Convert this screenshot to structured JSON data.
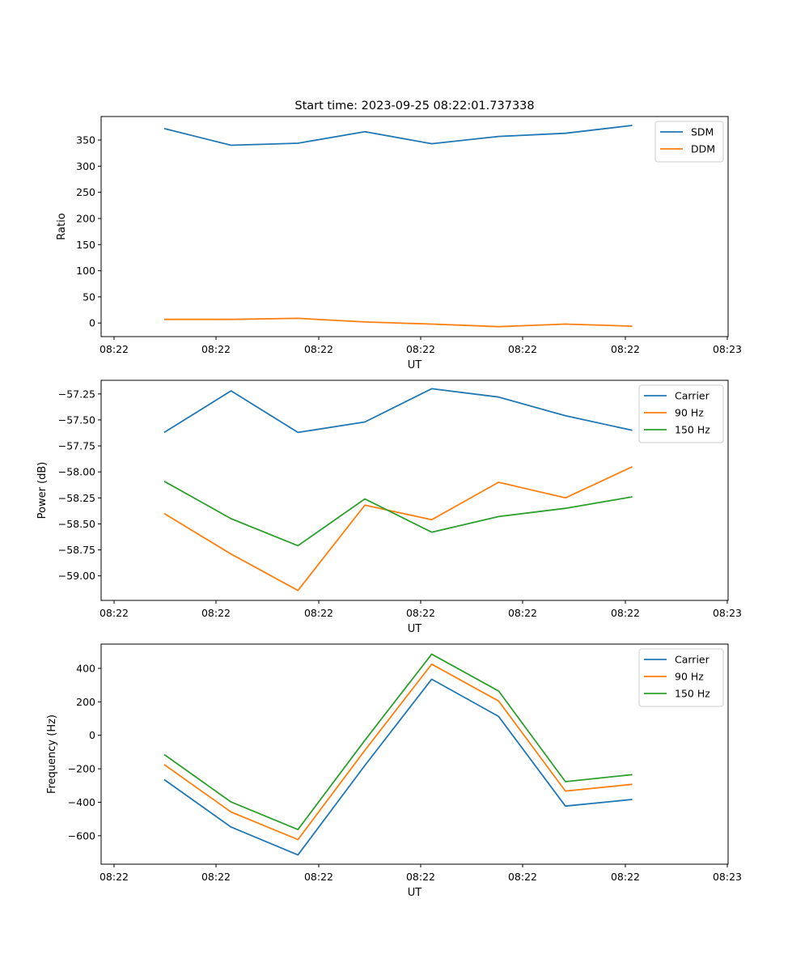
{
  "chart_data": [
    {
      "type": "line",
      "title": "Start time: 2023-09-25 08:22:01.737338",
      "xlabel": "UT",
      "ylabel": "Ratio",
      "x_tick_labels": [
        "08:22",
        "08:22",
        "08:22",
        "08:22",
        "08:22",
        "08:22",
        "08:23"
      ],
      "y_ticks": [
        0,
        50,
        100,
        150,
        200,
        250,
        300,
        350
      ],
      "ylim": [
        -26,
        395
      ],
      "x": [
        1,
        2,
        3,
        4,
        5,
        6,
        7,
        8
      ],
      "series": [
        {
          "name": "SDM",
          "color": "#1f77b4",
          "values": [
            372,
            340,
            344,
            366,
            343,
            357,
            363,
            378
          ]
        },
        {
          "name": "DDM",
          "color": "#ff7f0e",
          "values": [
            7,
            7,
            9,
            2,
            -2,
            -7,
            -2,
            -6
          ]
        }
      ],
      "legend": "top-right"
    },
    {
      "type": "line",
      "title": "",
      "xlabel": "UT",
      "ylabel": "Power (dB)",
      "x_tick_labels": [
        "08:22",
        "08:22",
        "08:22",
        "08:22",
        "08:22",
        "08:22",
        "08:23"
      ],
      "y_ticks": [
        -59.0,
        -58.75,
        -58.5,
        -58.25,
        -58.0,
        -57.75,
        -57.5,
        -57.25
      ],
      "y_tick_labels": [
        "−59.00",
        "−58.75",
        "−58.50",
        "−58.25",
        "−58.00",
        "−57.75",
        "−57.50",
        "−57.25"
      ],
      "ylim": [
        -59.236,
        -57.119
      ],
      "x": [
        1,
        2,
        3,
        4,
        5,
        6,
        7,
        8
      ],
      "series": [
        {
          "name": "Carrier",
          "color": "#1f77b4",
          "values": [
            -57.62,
            -57.22,
            -57.62,
            -57.52,
            -57.2,
            -57.28,
            -57.46,
            -57.6
          ]
        },
        {
          "name": "90 Hz",
          "color": "#ff7f0e",
          "values": [
            -58.4,
            -58.79,
            -59.14,
            -58.32,
            -58.46,
            -58.1,
            -58.25,
            -57.95
          ]
        },
        {
          "name": "150 Hz",
          "color": "#2ca02c",
          "values": [
            -58.09,
            -58.45,
            -58.71,
            -58.26,
            -58.58,
            -58.43,
            -58.35,
            -58.24
          ]
        }
      ],
      "legend": "top-right"
    },
    {
      "type": "line",
      "title": "",
      "xlabel": "UT",
      "ylabel": "Frequency (Hz)",
      "x_tick_labels": [
        "08:22",
        "08:22",
        "08:22",
        "08:22",
        "08:22",
        "08:22",
        "08:23"
      ],
      "y_ticks": [
        -600,
        -400,
        -200,
        0,
        200,
        400
      ],
      "y_tick_labels": [
        "−600",
        "−400",
        "−200",
        "0",
        "200",
        "400"
      ],
      "ylim": [
        -770,
        545
      ],
      "x": [
        1,
        2,
        3,
        4,
        5,
        6,
        7,
        8
      ],
      "series": [
        {
          "name": "Carrier",
          "color": "#1f77b4",
          "values": [
            -265,
            -548,
            -715,
            -180,
            335,
            113,
            -423,
            -383
          ]
        },
        {
          "name": "90 Hz",
          "color": "#ff7f0e",
          "values": [
            -175,
            -458,
            -623,
            -90,
            425,
            205,
            -333,
            -293
          ]
        },
        {
          "name": "150 Hz",
          "color": "#2ca02c",
          "values": [
            -115,
            -398,
            -563,
            -30,
            485,
            265,
            -277,
            -235
          ]
        }
      ],
      "legend": "top-right"
    }
  ]
}
